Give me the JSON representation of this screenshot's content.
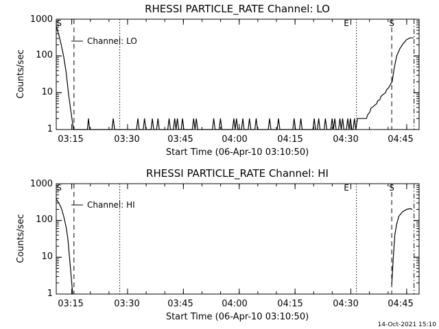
{
  "chart_data": [
    {
      "type": "line",
      "title": "RHESSI PARTICLE_RATE Channel: LO",
      "xlabel": "Start Time (06-Apr-10 03:10:50)",
      "ylabel": "Counts/sec",
      "yscale": "log",
      "xlim": [
        3.1806,
        4.8056
      ],
      "ylim": [
        1,
        1000
      ],
      "xticks": [
        "03:15",
        "03:30",
        "03:45",
        "04:00",
        "04:15",
        "04:30",
        "04:45"
      ],
      "yticks": [
        "1",
        "10",
        "100",
        "1000"
      ],
      "legend": "Channel: LO",
      "markers": [
        "E",
        "S"
      ],
      "series": [
        {
          "name": "Channel: LO",
          "points": [
            [
              3.181,
              650
            ],
            [
              3.192,
              380
            ],
            [
              3.203,
              200
            ],
            [
              3.214,
              95
            ],
            [
              3.225,
              35
            ],
            [
              3.236,
              9
            ],
            [
              3.245,
              3.5
            ],
            [
              3.253,
              1.6
            ],
            [
              3.258,
              1
            ],
            [
              3.32,
              1
            ],
            [
              3.325,
              2
            ],
            [
              3.33,
              1
            ],
            [
              3.43,
              1
            ],
            [
              3.436,
              2
            ],
            [
              3.442,
              1
            ],
            [
              3.54,
              1
            ],
            [
              3.546,
              2
            ],
            [
              3.552,
              1
            ],
            [
              3.57,
              1
            ],
            [
              3.576,
              2
            ],
            [
              3.582,
              1
            ],
            [
              3.605,
              1
            ],
            [
              3.611,
              2
            ],
            [
              3.617,
              1
            ],
            [
              3.63,
              1
            ],
            [
              3.636,
              2
            ],
            [
              3.642,
              1
            ],
            [
              3.68,
              1
            ],
            [
              3.686,
              2
            ],
            [
              3.692,
              1
            ],
            [
              3.705,
              1
            ],
            [
              3.711,
              2
            ],
            [
              3.717,
              1
            ],
            [
              3.723,
              2
            ],
            [
              3.729,
              1
            ],
            [
              3.74,
              1
            ],
            [
              3.746,
              2
            ],
            [
              3.752,
              1
            ],
            [
              3.79,
              1
            ],
            [
              3.796,
              2
            ],
            [
              3.802,
              1
            ],
            [
              3.808,
              2
            ],
            [
              3.814,
              1
            ],
            [
              3.88,
              1
            ],
            [
              3.886,
              2
            ],
            [
              3.892,
              1
            ],
            [
              3.91,
              1
            ],
            [
              3.916,
              2
            ],
            [
              3.922,
              1
            ],
            [
              3.97,
              1
            ],
            [
              3.976,
              2
            ],
            [
              3.982,
              1
            ],
            [
              3.988,
              2
            ],
            [
              3.994,
              1
            ],
            [
              4.01,
              1
            ],
            [
              4.016,
              2
            ],
            [
              4.022,
              1
            ],
            [
              4.04,
              1
            ],
            [
              4.046,
              2
            ],
            [
              4.052,
              1
            ],
            [
              4.07,
              1
            ],
            [
              4.076,
              2
            ],
            [
              4.082,
              1
            ],
            [
              4.13,
              1
            ],
            [
              4.136,
              2
            ],
            [
              4.142,
              1
            ],
            [
              4.17,
              1
            ],
            [
              4.176,
              2
            ],
            [
              4.182,
              1
            ],
            [
              4.24,
              1
            ],
            [
              4.246,
              2
            ],
            [
              4.252,
              1
            ],
            [
              4.27,
              1
            ],
            [
              4.276,
              2
            ],
            [
              4.282,
              1
            ],
            [
              4.33,
              1
            ],
            [
              4.336,
              2
            ],
            [
              4.342,
              1
            ],
            [
              4.35,
              1
            ],
            [
              4.356,
              2
            ],
            [
              4.362,
              1
            ],
            [
              4.38,
              1
            ],
            [
              4.386,
              2
            ],
            [
              4.392,
              1
            ],
            [
              4.41,
              1
            ],
            [
              4.416,
              2
            ],
            [
              4.422,
              1
            ],
            [
              4.428,
              2
            ],
            [
              4.434,
              1
            ],
            [
              4.445,
              1
            ],
            [
              4.451,
              2
            ],
            [
              4.457,
              1
            ],
            [
              4.463,
              2
            ],
            [
              4.469,
              1
            ],
            [
              4.48,
              1
            ],
            [
              4.486,
              2
            ],
            [
              4.492,
              1
            ],
            [
              4.498,
              2
            ],
            [
              4.504,
              1
            ],
            [
              4.51,
              1
            ],
            [
              4.516,
              2
            ],
            [
              4.522,
              1
            ],
            [
              4.53,
              2
            ],
            [
              4.57,
              2
            ],
            [
              4.575,
              2.5
            ],
            [
              4.585,
              3
            ],
            [
              4.59,
              3.8
            ],
            [
              4.6,
              4.2
            ],
            [
              4.605,
              4.5
            ],
            [
              4.615,
              5
            ],
            [
              4.62,
              6
            ],
            [
              4.63,
              6.5
            ],
            [
              4.635,
              8
            ],
            [
              4.645,
              9
            ],
            [
              4.655,
              10
            ],
            [
              4.66,
              12
            ],
            [
              4.67,
              14
            ],
            [
              4.675,
              16
            ],
            [
              4.685,
              20
            ],
            [
              4.695,
              50
            ],
            [
              4.705,
              100
            ],
            [
              4.72,
              160
            ],
            [
              4.735,
              220
            ],
            [
              4.75,
              280
            ],
            [
              4.765,
              310
            ],
            [
              4.78,
              310
            ]
          ]
        }
      ],
      "vlines": [
        {
          "x": 3.26,
          "style": "dashed"
        },
        {
          "x": 3.465,
          "style": "dotted"
        },
        {
          "x": 4.525,
          "style": "dotted"
        },
        {
          "x": 4.683,
          "style": "dashed"
        },
        {
          "x": 4.783,
          "style": "dashdot"
        }
      ]
    },
    {
      "type": "line",
      "title": "RHESSI PARTICLE_RATE Channel: HI",
      "xlabel": "Start Time (06-Apr-10 03:10:50)",
      "ylabel": "Counts/sec",
      "yscale": "log",
      "xlim": [
        3.1806,
        4.8056
      ],
      "ylim": [
        1,
        1000
      ],
      "xticks": [
        "03:15",
        "03:30",
        "03:45",
        "04:00",
        "04:15",
        "04:30",
        "04:45"
      ],
      "yticks": [
        "1",
        "10",
        "100",
        "1000"
      ],
      "legend": "Channel: HI",
      "markers": [
        "E",
        "S"
      ],
      "series": [
        {
          "name": "Channel: HI",
          "points": [
            [
              3.181,
              380
            ],
            [
              3.192,
              300
            ],
            [
              3.203,
              220
            ],
            [
              3.214,
              130
            ],
            [
              3.225,
              65
            ],
            [
              3.233,
              30
            ],
            [
              3.24,
              10
            ],
            [
              3.245,
              4.5
            ],
            [
              3.25,
              2
            ],
            [
              3.254,
              1
            ]
          ]
        },
        {
          "name": "Channel: HI",
          "points": [
            [
              4.683,
              1.8
            ],
            [
              4.69,
              10
            ],
            [
              4.697,
              40
            ],
            [
              4.705,
              80
            ],
            [
              4.715,
              130
            ],
            [
              4.73,
              170
            ],
            [
              4.75,
              200
            ],
            [
              4.765,
              210
            ],
            [
              4.775,
              200
            ]
          ]
        }
      ],
      "vlines": [
        {
          "x": 3.26,
          "style": "dashed"
        },
        {
          "x": 3.465,
          "style": "dotted"
        },
        {
          "x": 4.525,
          "style": "dotted"
        },
        {
          "x": 4.683,
          "style": "dashed"
        },
        {
          "x": 4.783,
          "style": "dashdot"
        }
      ]
    }
  ],
  "footer": {
    "timestamp": "14-Oct-2021 15:10"
  }
}
